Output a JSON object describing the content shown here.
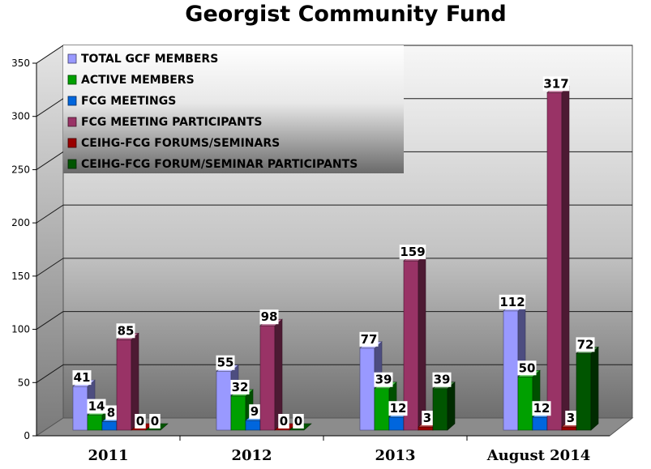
{
  "chart_data": {
    "type": "bar",
    "title": "Georgist Community Fund",
    "categories": [
      "2011",
      "2012",
      "2013",
      "August 2014"
    ],
    "series": [
      {
        "name": "TOTAL GCF MEMBERS",
        "values": [
          41,
          55,
          77,
          112
        ],
        "color": "#9999ff"
      },
      {
        "name": "ACTIVE MEMBERS",
        "values": [
          14,
          32,
          39,
          50
        ],
        "color": "#00a000"
      },
      {
        "name": "FCG MEETINGS",
        "values": [
          8,
          9,
          12,
          12
        ],
        "color": "#0066dd"
      },
      {
        "name": "FCG MEETING PARTICIPANTS",
        "values": [
          85,
          98,
          159,
          317
        ],
        "color": "#993366"
      },
      {
        "name": "CEIHG-FCG FORUMS/SEMINARS",
        "values": [
          0,
          0,
          3,
          3
        ],
        "color": "#990000"
      },
      {
        "name": "CEIHG-FCG FORUM/SEMINAR PARTICIPANTS",
        "values": [
          0,
          0,
          39,
          72
        ],
        "color": "#005500"
      }
    ],
    "yticks": [
      "0",
      "50",
      "100",
      "150",
      "200",
      "250",
      "300",
      "350"
    ],
    "ylim": [
      0,
      350
    ],
    "grid": true,
    "legend": "top-left"
  }
}
